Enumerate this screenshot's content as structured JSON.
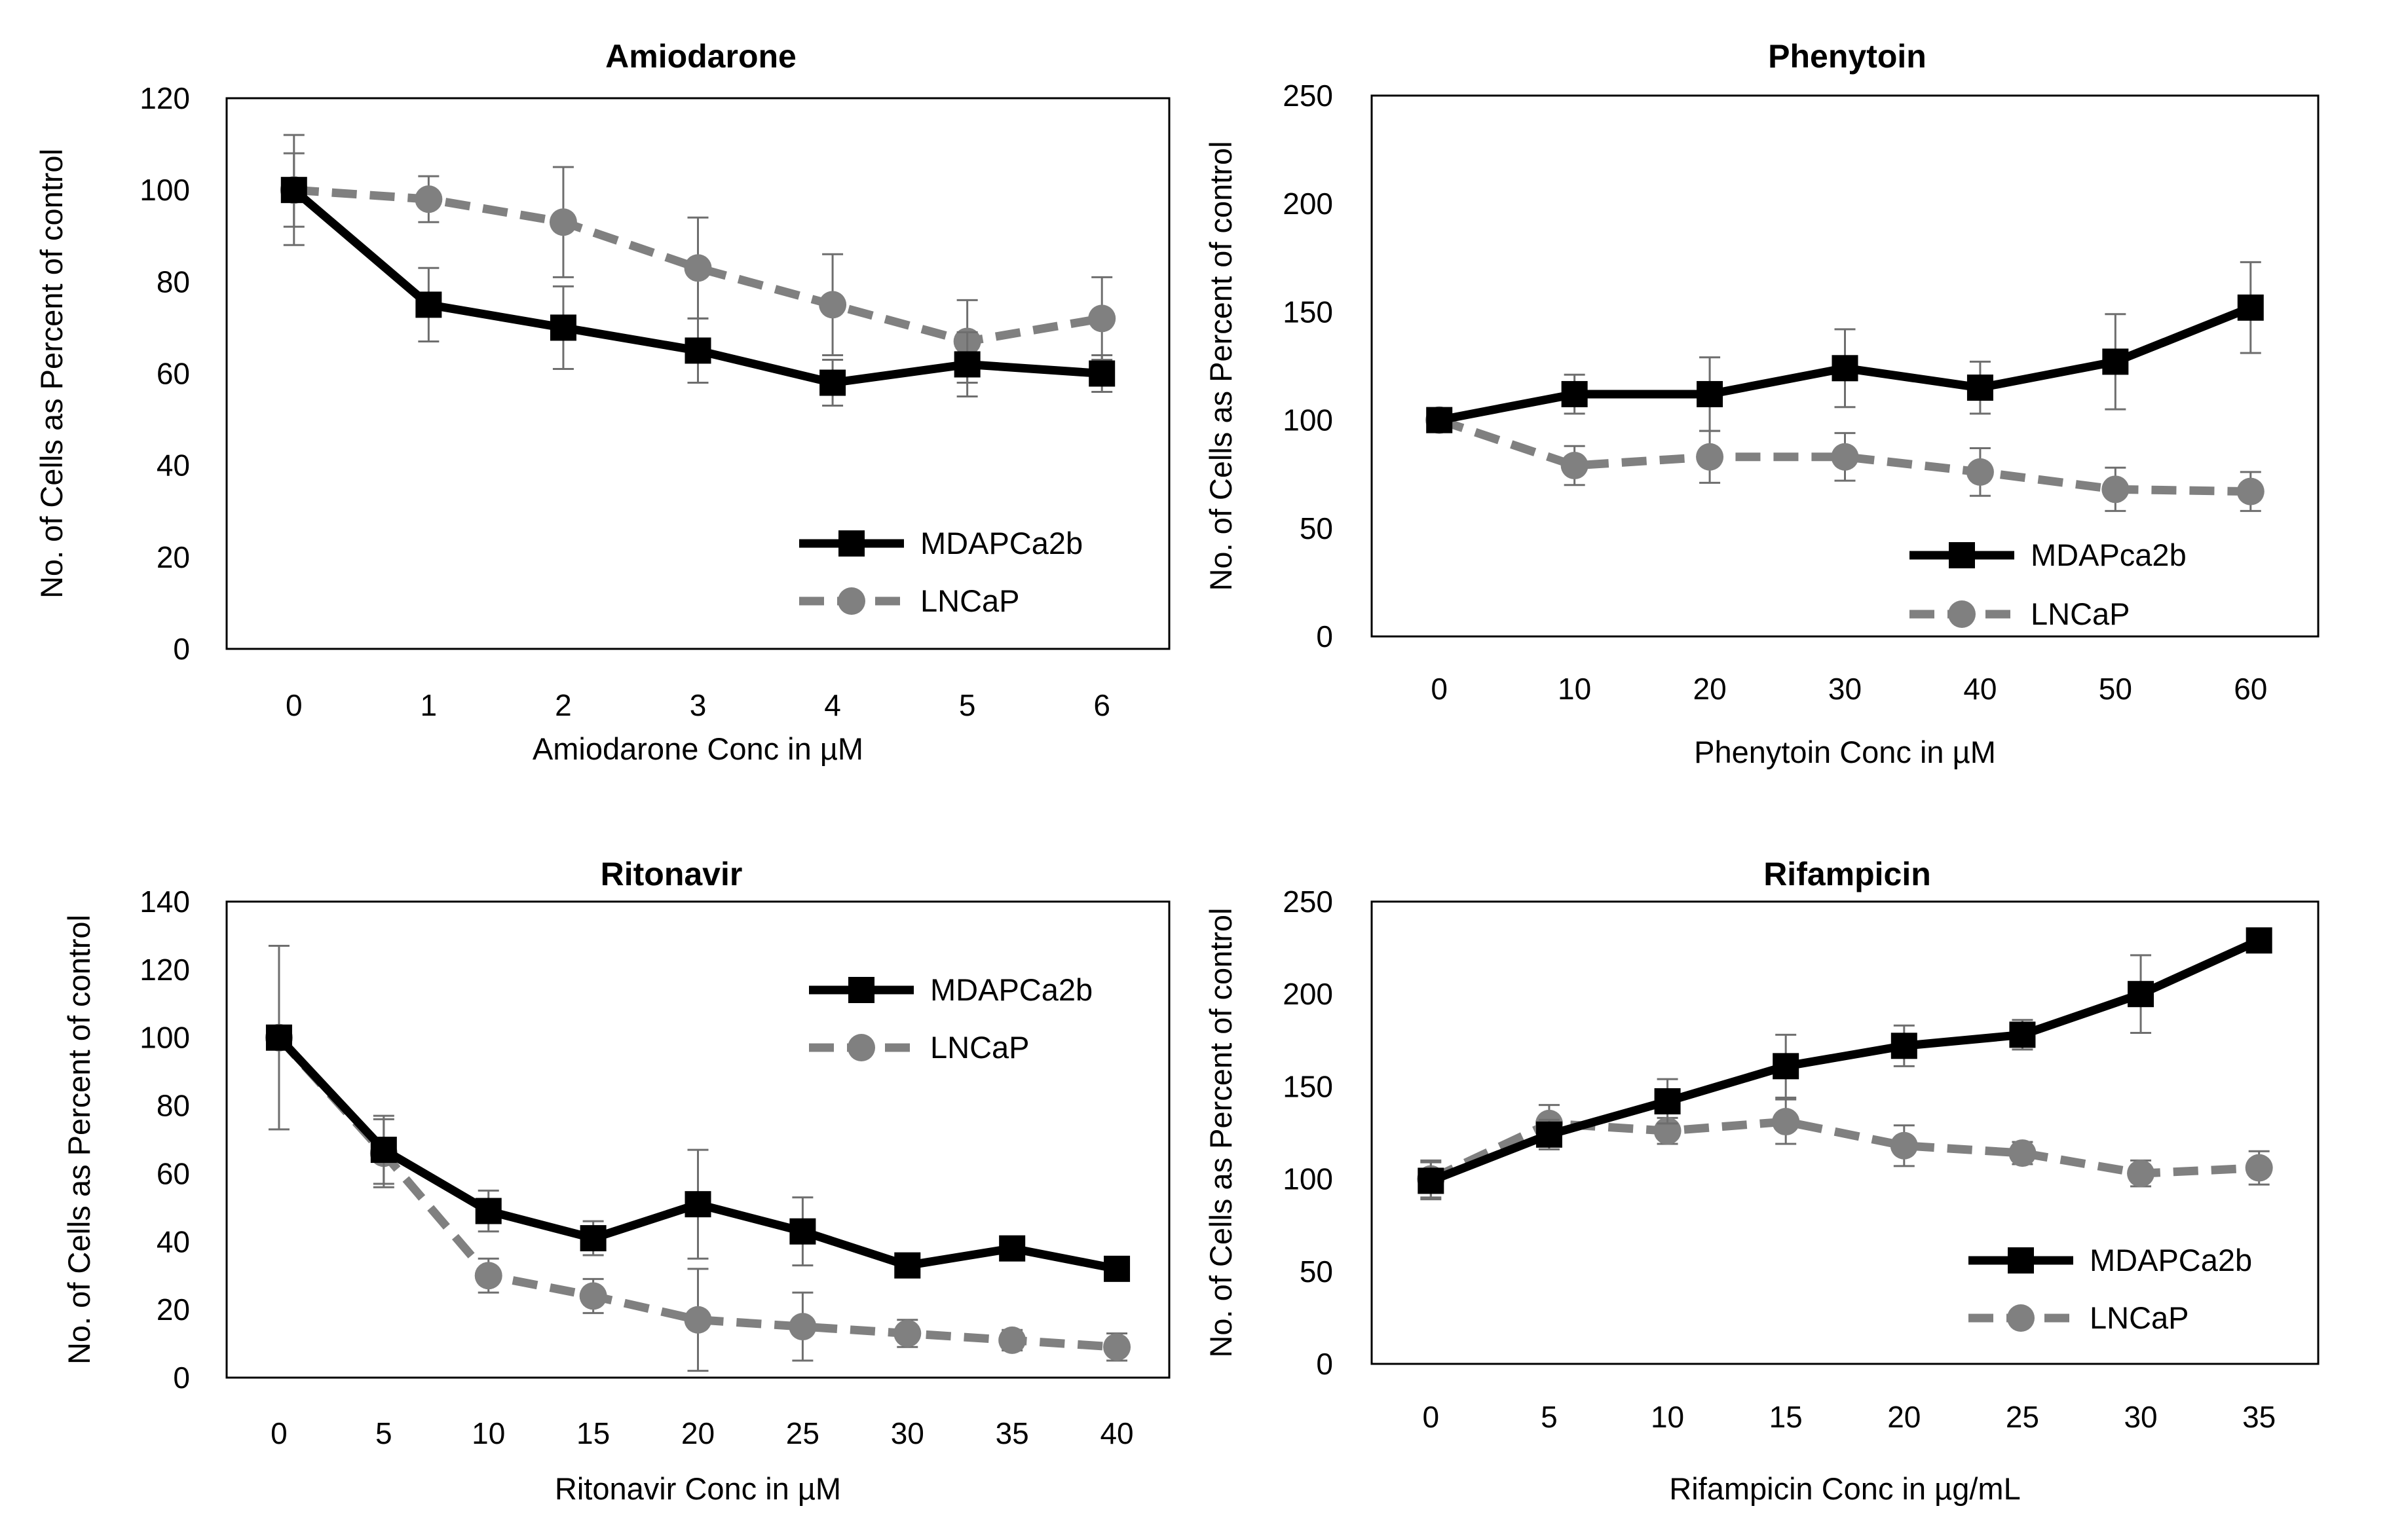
{
  "chart_data": [
    {
      "type": "line",
      "title": "Amiodarone",
      "xlabel": "Amiodarone Conc in µM",
      "ylabel": "No. of Cells as Percent of control",
      "categories": [
        "0",
        "1",
        "2",
        "3",
        "4",
        "5",
        "6"
      ],
      "ylim": [
        0,
        120
      ],
      "yticks": [
        0,
        20,
        40,
        60,
        80,
        100,
        120
      ],
      "legend_position": "bottom-right",
      "series": [
        {
          "name": "MDAPCa2b",
          "values": [
            100,
            75,
            70,
            65,
            58,
            62,
            60
          ],
          "errors": [
            12,
            8,
            9,
            7,
            5,
            7,
            4
          ],
          "color": "#000000",
          "style": "solid",
          "marker": "square"
        },
        {
          "name": "LNCaP",
          "values": [
            100,
            98,
            93,
            83,
            75,
            67,
            72
          ],
          "errors": [
            8,
            5,
            12,
            11,
            11,
            9,
            9
          ],
          "color": "#808080",
          "style": "dashed",
          "marker": "circle"
        }
      ]
    },
    {
      "type": "line",
      "title": "Phenytoin",
      "xlabel": "Phenytoin Conc in µM",
      "ylabel": "No. of Cells as Percent of control",
      "categories": [
        "0",
        "10",
        "20",
        "30",
        "40",
        "50",
        "60"
      ],
      "ylim": [
        0,
        250
      ],
      "yticks": [
        0,
        50,
        100,
        150,
        200,
        250
      ],
      "legend_position": "bottom-right",
      "series": [
        {
          "name": "MDAPca2b",
          "values": [
            100,
            112,
            112,
            124,
            115,
            127,
            152
          ],
          "errors": [
            4,
            9,
            17,
            18,
            12,
            22,
            21
          ],
          "color": "#000000",
          "style": "solid",
          "marker": "square"
        },
        {
          "name": "LNCaP",
          "values": [
            100,
            79,
            83,
            83,
            76,
            68,
            67
          ],
          "errors": [
            4,
            9,
            12,
            11,
            11,
            10,
            9
          ],
          "color": "#808080",
          "style": "dashed",
          "marker": "circle"
        }
      ]
    },
    {
      "type": "line",
      "title": "Ritonavir",
      "xlabel": "Ritonavir Conc in µM",
      "ylabel": "No. of Cells as Percent of control",
      "categories": [
        "0",
        "5",
        "10",
        "15",
        "20",
        "25",
        "30",
        "35",
        "40"
      ],
      "ylim": [
        0,
        140
      ],
      "yticks": [
        0,
        20,
        40,
        60,
        80,
        100,
        120,
        140
      ],
      "legend_position": "top-right",
      "series": [
        {
          "name": "MDAPCa2b",
          "values": [
            100,
            67,
            49,
            41,
            51,
            43,
            33,
            38,
            32
          ],
          "errors": [
            27,
            10,
            6,
            5,
            16,
            10,
            3,
            3,
            3
          ],
          "color": "#000000",
          "style": "solid",
          "marker": "square"
        },
        {
          "name": "LNCaP",
          "values": [
            100,
            66,
            30,
            24,
            17,
            15,
            13,
            11,
            9
          ],
          "errors": [
            3,
            10,
            5,
            5,
            15,
            10,
            4,
            3,
            4
          ],
          "color": "#808080",
          "style": "dashed",
          "marker": "circle"
        }
      ]
    },
    {
      "type": "line",
      "title": "Rifampicin",
      "xlabel": "Rifampicin Conc in µg/mL",
      "ylabel": "No. of Cells as Percent of control",
      "categories": [
        "0",
        "5",
        "10",
        "15",
        "20",
        "25",
        "30",
        "35"
      ],
      "ylim": [
        0,
        250
      ],
      "yticks": [
        0,
        50,
        100,
        150,
        200,
        250
      ],
      "legend_position": "bottom-right",
      "series": [
        {
          "name": "MDAPCa2b",
          "values": [
            99,
            124,
            142,
            161,
            172,
            178,
            200,
            229
          ],
          "errors": [
            10,
            8,
            12,
            17,
            11,
            8,
            21,
            6
          ],
          "color": "#000000",
          "style": "solid",
          "marker": "square"
        },
        {
          "name": "LNCaP",
          "values": [
            100,
            130,
            126,
            131,
            118,
            114,
            103,
            106
          ],
          "errors": [
            10,
            10,
            7,
            12,
            11,
            6,
            7,
            9
          ],
          "color": "#808080",
          "style": "dashed",
          "marker": "circle"
        }
      ]
    }
  ]
}
